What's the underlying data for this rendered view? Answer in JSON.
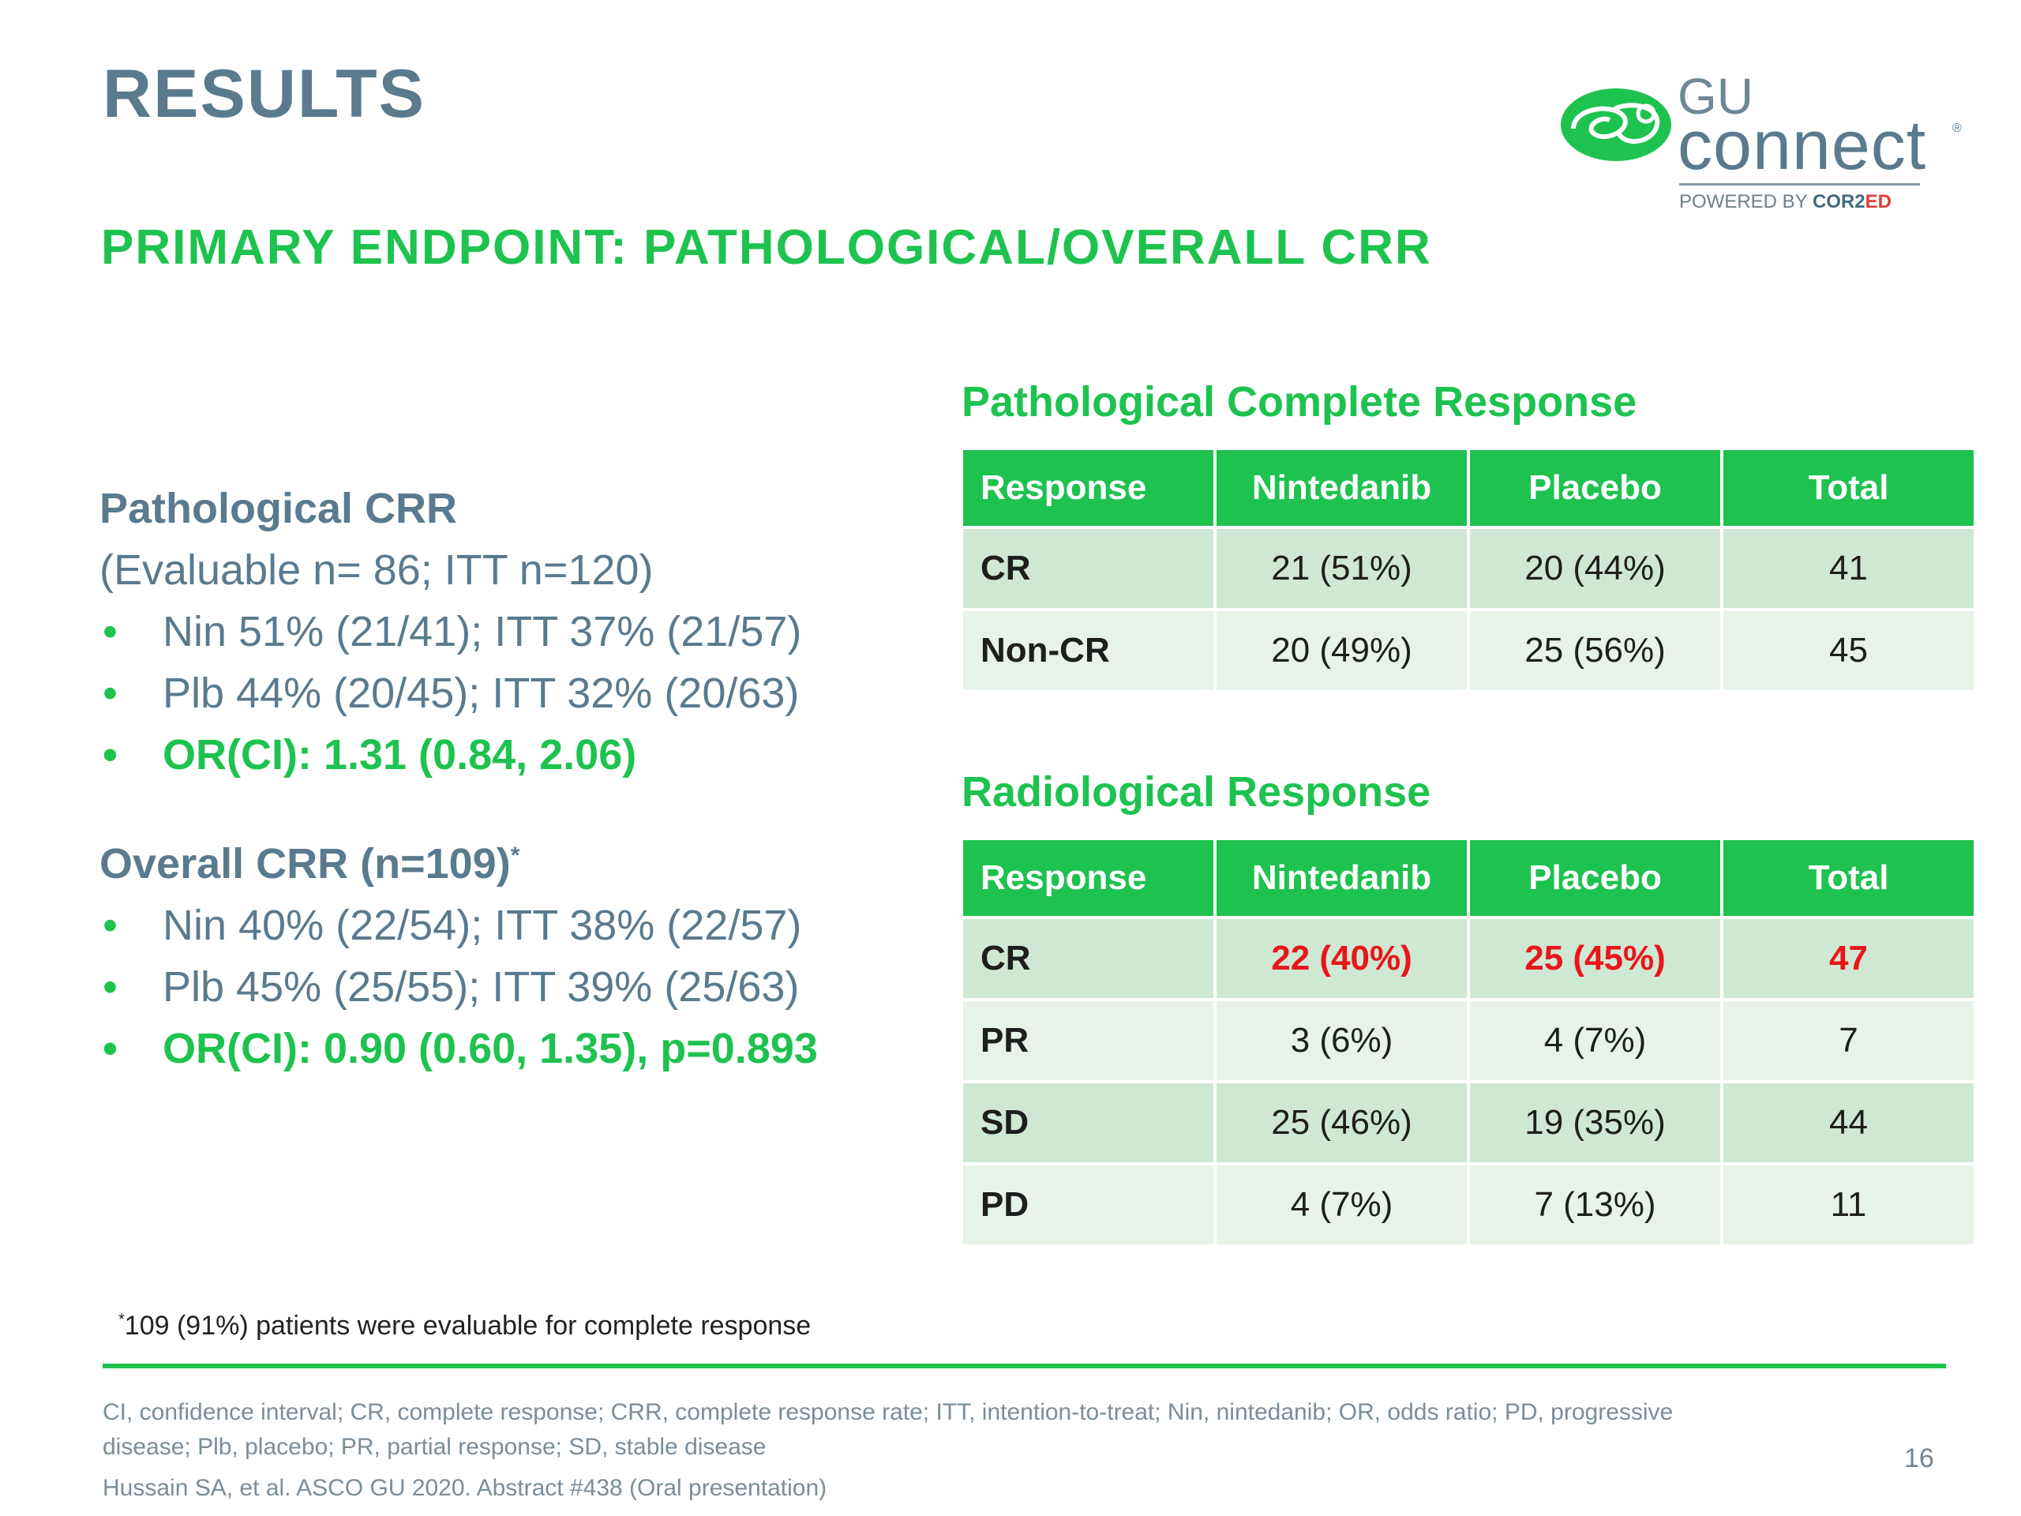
{
  "header": {
    "title": "RESULTS",
    "subtitle": "PRIMARY ENDPOINT: PATHOLOGICAL/OVERALL CRR"
  },
  "logo": {
    "gu": "GU",
    "connect": "connect",
    "registered": "®",
    "powered_by": "POWERED BY",
    "brand_a": "COR2",
    "brand_b": "ED"
  },
  "left": {
    "pathological": {
      "heading": "Pathological CRR",
      "sub": "(Evaluable n= 86; ITT n=120)",
      "bullets": [
        "Nin 51% (21/41); ITT 37% (21/57)",
        "Plb 44% (20/45); ITT 32% (20/63)",
        "OR(CI): 1.31 (0.84, 2.06)"
      ]
    },
    "overall": {
      "heading": "Overall CRR (n=109)",
      "heading_mark": "*",
      "bullets": [
        "Nin 40% (22/54); ITT 38% (22/57)",
        "Plb 45% (25/55); ITT 39% (25/63)",
        "OR(CI): 0.90 (0.60, 1.35), p=0.893"
      ]
    }
  },
  "path_table": {
    "title": "Pathological Complete Response",
    "headers": [
      "Response",
      "Nintedanib",
      "Placebo",
      "Total"
    ],
    "rows": [
      [
        "CR",
        "21 (51%)",
        "20 (44%)",
        "41"
      ],
      [
        "Non-CR",
        "20 (49%)",
        "25 (56%)",
        "45"
      ]
    ]
  },
  "rad_table": {
    "title": "Radiological Response",
    "headers": [
      "Response",
      "Nintedanib",
      "Placebo",
      "Total"
    ],
    "rows": [
      [
        "CR",
        "22 (40%)",
        "25 (45%)",
        "47"
      ],
      [
        "PR",
        "3 (6%)",
        "4 (7%)",
        "7"
      ],
      [
        "SD",
        "25 (46%)",
        "19 (35%)",
        "44"
      ],
      [
        "PD",
        "4 (7%)",
        "7 (13%)",
        "11"
      ]
    ]
  },
  "footer": {
    "footnote_mark": "*",
    "footnote": "109 (91%) patients were evaluable for complete response",
    "abbreviations": "CI, confidence interval; CR, complete response; CRR, complete response rate; ITT, intention-to-treat; Nin, nintedanib; OR, odds ratio; PD, progressive disease; Plb, placebo; PR, partial response; SD, stable disease",
    "reference": "Hussain SA, et al. ASCO GU 2020. Abstract #438 (Oral presentation)",
    "page_number": "16"
  },
  "colors": {
    "accent_green": "#1ec24f",
    "title_slate": "#5a7a8e",
    "highlight_red": "#e8161b",
    "row_dark": "#cfe8d3",
    "row_light": "#e7f3e9"
  }
}
